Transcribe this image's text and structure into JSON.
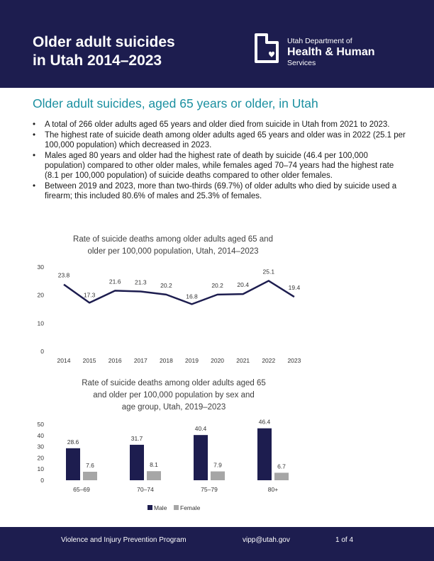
{
  "header": {
    "title_line1": "Older adult suicides",
    "title_line2": "in Utah 2014–2023",
    "logo": {
      "line1": "Utah Department of",
      "line2": "Health & Human",
      "line3": "Services",
      "icon": "utah-state-outline-heart-icon"
    }
  },
  "section_title": "Older adult suicides, aged 65 years or older, in Utah",
  "bullets": [
    "A total of 266 older adults aged 65 years and older died from suicide in Utah from 2021 to 2023.",
    "The highest rate of suicide death among older adults aged 65 years and older was in 2022 (25.1 per 100,000 population) which decreased in 2023.",
    "Males aged 80 years and older had the highest rate of death by suicide (46.4 per 100,000 population) compared to other older males, while females aged 70–74 years had the highest rate (8.1 per 100,000 population) of suicide deaths compared to other older females.",
    "Between 2019 and 2023, more than two-thirds (69.7%) of older adults who died by suicide used a firearm; this included 80.6% of males and 25.3% of females."
  ],
  "chart_data": [
    {
      "type": "line",
      "title_lines": [
        "Rate of suicide deaths among older adults aged 65 and",
        "older per 100,000 population, Utah, 2014–2023"
      ],
      "categories": [
        "2014",
        "2015",
        "2016",
        "2017",
        "2018",
        "2019",
        "2020",
        "2021",
        "2022",
        "2023"
      ],
      "values": [
        23.8,
        17.3,
        21.6,
        21.3,
        20.2,
        16.8,
        20.2,
        20.4,
        25.1,
        19.4
      ],
      "ylim": [
        0,
        30
      ],
      "yticks": [
        0,
        10,
        20,
        30
      ],
      "grid": false,
      "colors": {
        "line": "#1d1d4f"
      }
    },
    {
      "type": "bar",
      "title_lines": [
        "Rate of suicide deaths among older adults aged 65",
        "and older per 100,000 population by sex and",
        "age group, Utah, 2019–2023"
      ],
      "categories": [
        "65–69",
        "70–74",
        "75–79",
        "80+"
      ],
      "series": [
        {
          "name": "Male",
          "values": [
            28.6,
            31.7,
            40.4,
            46.4
          ],
          "color": "#1d1d4f"
        },
        {
          "name": "Female",
          "values": [
            7.6,
            8.1,
            7.9,
            6.7
          ],
          "color": "#a6a6a6"
        }
      ],
      "ylim": [
        0,
        50
      ],
      "yticks": [
        0,
        10,
        20,
        30,
        40,
        50
      ],
      "grid": false,
      "legend": "bottom-center"
    }
  ],
  "footer": {
    "program": "Violence and Injury Prevention Program",
    "email": "vipp@utah.gov",
    "page": "1 of 4"
  },
  "colors": {
    "navy": "#1d1d4f",
    "teal": "#1a8fa0",
    "female_gray": "#a6a6a6"
  }
}
